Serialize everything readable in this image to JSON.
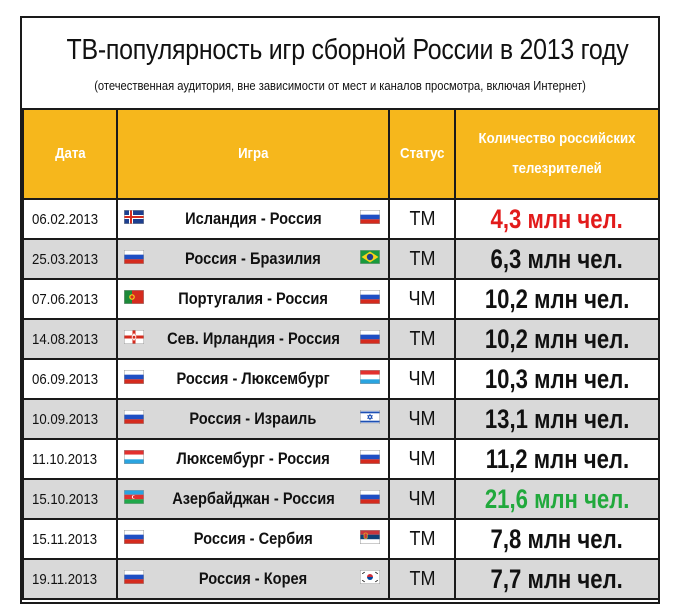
{
  "title": "ТВ-популярность игр сборной России в 2013 году",
  "subtitle": "(отечественная аудитория, вне зависимости от мест и каналов просмотра, включая Интернет)",
  "headers": {
    "date": "Дата",
    "game": "Игра",
    "status": "Статус",
    "viewers_line1": "Количество российских",
    "viewers_line2": "телезрителей"
  },
  "colors": {
    "header_bg": "#f6b71c",
    "low_value": "#e21b1b",
    "high_value": "#21a93c",
    "alt_row": "#d9d9d9"
  },
  "rows": [
    {
      "date": "06.02.2013",
      "game": "Исландия - Россия",
      "flag_left": "iceland-flag",
      "flag_right": "russia-flag",
      "status": "ТМ",
      "viewers": "4,3 млн чел.",
      "highlight": "low"
    },
    {
      "date": "25.03.2013",
      "game": "Россия - Бразилия",
      "flag_left": "russia-flag",
      "flag_right": "brazil-flag",
      "status": "ТМ",
      "viewers": "6,3 млн чел.",
      "highlight": ""
    },
    {
      "date": "07.06.2013",
      "game": "Португалия - Россия",
      "flag_left": "portugal-flag",
      "flag_right": "russia-flag",
      "status": "ЧМ",
      "viewers": "10,2 млн чел.",
      "highlight": ""
    },
    {
      "date": "14.08.2013",
      "game": "Сев. Ирландия - Россия",
      "flag_left": "northern-ireland-flag",
      "flag_right": "russia-flag",
      "status": "ТМ",
      "viewers": "10,2 млн чел.",
      "highlight": ""
    },
    {
      "date": "06.09.2013",
      "game": "Россия - Люксембург",
      "flag_left": "russia-flag",
      "flag_right": "luxembourg-flag",
      "status": "ЧМ",
      "viewers": "10,3 млн чел.",
      "highlight": ""
    },
    {
      "date": "10.09.2013",
      "game": "Россия - Израиль",
      "flag_left": "russia-flag",
      "flag_right": "israel-flag",
      "status": "ЧМ",
      "viewers": "13,1 млн чел.",
      "highlight": ""
    },
    {
      "date": "11.10.2013",
      "game": "Люксембург - Россия",
      "flag_left": "luxembourg-flag",
      "flag_right": "russia-flag",
      "status": "ЧМ",
      "viewers": "11,2 млн чел.",
      "highlight": ""
    },
    {
      "date": "15.10.2013",
      "game": "Азербайджан - Россия",
      "flag_left": "azerbaijan-flag",
      "flag_right": "russia-flag",
      "status": "ЧМ",
      "viewers": "21,6 млн чел.",
      "highlight": "high"
    },
    {
      "date": "15.11.2013",
      "game": "Россия - Сербия",
      "flag_left": "russia-flag",
      "flag_right": "serbia-flag",
      "status": "ТМ",
      "viewers": "7,8 млн чел.",
      "highlight": ""
    },
    {
      "date": "19.11.2013",
      "game": "Россия - Корея",
      "flag_left": "russia-flag",
      "flag_right": "south-korea-flag",
      "status": "ТМ",
      "viewers": "7,7 млн чел.",
      "highlight": ""
    }
  ]
}
